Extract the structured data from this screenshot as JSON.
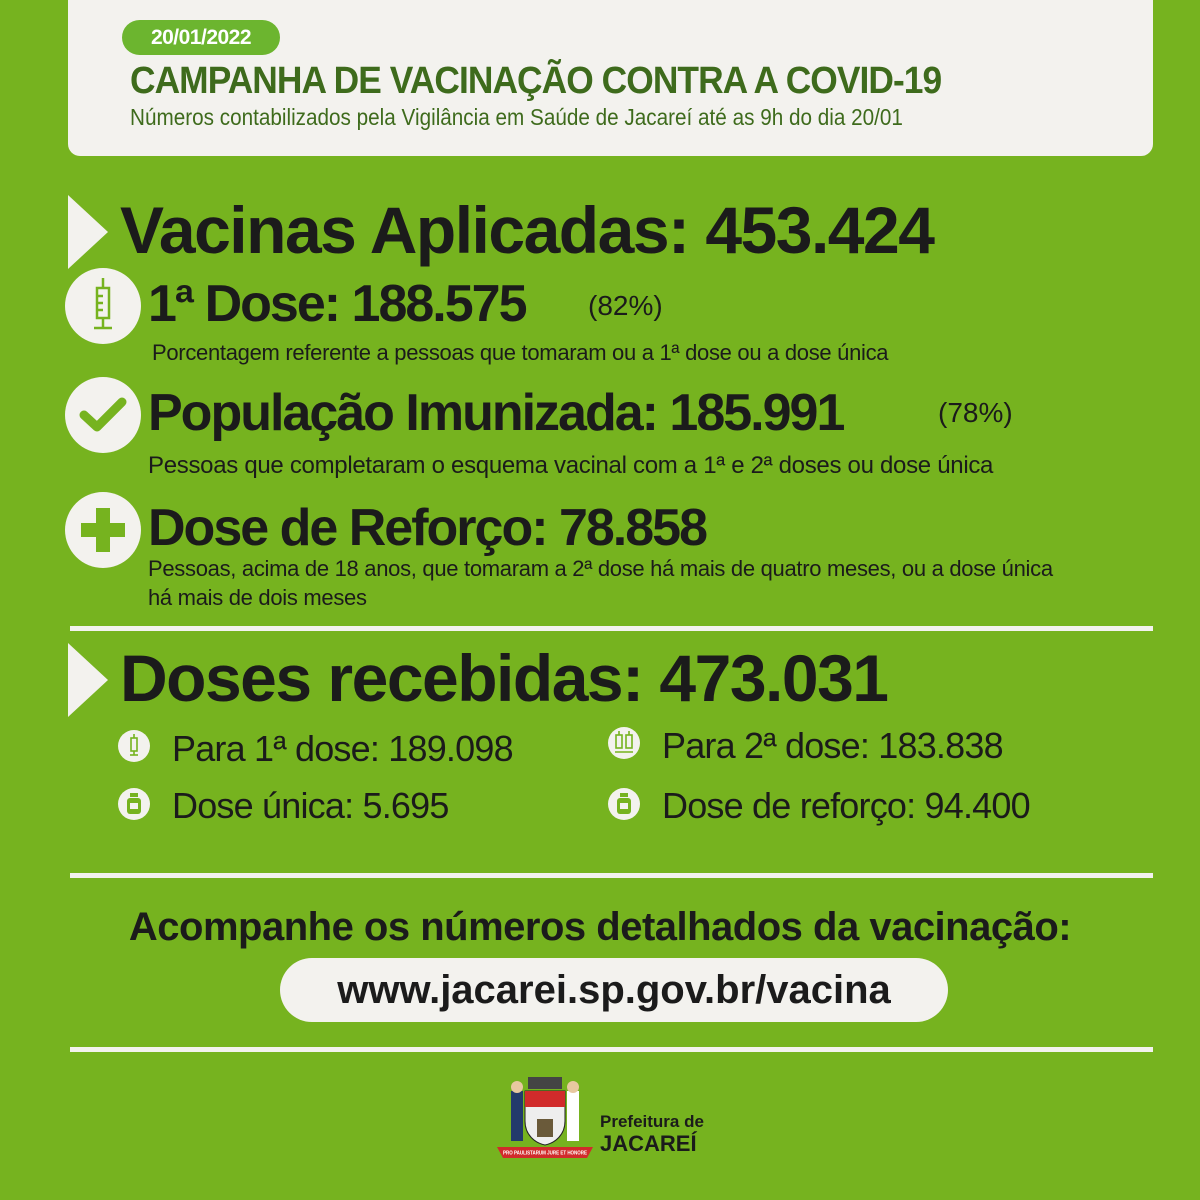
{
  "header": {
    "date": "20/01/2022",
    "title": "CAMPANHA DE VACINAÇÃO CONTRA A COVID-19",
    "subtitle": "Números contabilizados pela Vigilância em Saúde de Jacareí até as 9h do dia 20/01"
  },
  "applied": {
    "label": "Vacinas Aplicadas: 453.424",
    "first_dose": {
      "label": "1ª Dose: 188.575",
      "percent": "(82%)",
      "note": "Porcentagem referente a pessoas que tomaram ou a 1ª dose ou a dose única",
      "icon": "syringe-icon"
    },
    "immunized": {
      "label": "População Imunizada: 185.991",
      "percent": "(78%)",
      "note": "Pessoas que completaram o esquema vacinal com a 1ª e 2ª doses ou dose única",
      "icon": "check-icon"
    },
    "booster": {
      "label": "Dose de Reforço: 78.858",
      "note1": "Pessoas, acima de 18 anos, que tomaram a  2ª dose há mais de quatro meses, ou a dose única",
      "note2": "há mais de dois meses",
      "icon": "plus-icon"
    }
  },
  "received": {
    "label": "Doses recebidas: 473.031",
    "items": [
      {
        "label": "Para 1ª dose: 189.098",
        "icon": "syringe-icon"
      },
      {
        "label": "Para 2ª dose: 183.838",
        "icon": "two-syringes-icon"
      },
      {
        "label": "Dose única: 5.695",
        "icon": "vial-icon"
      },
      {
        "label": "Dose de reforço: 94.400",
        "icon": "vial-icon"
      }
    ]
  },
  "footer": {
    "cta": "Acompanhe os números detalhados da vacinação:",
    "url": "www.jacarei.sp.gov.br/vacina",
    "logo_line1": "Prefeitura de",
    "logo_line2": "JACAREÍ",
    "crest_motto": "PRO PAULISTARUM JURE ET HONORE"
  },
  "colors": {
    "background": "#76b31f",
    "card": "#f3f2ee",
    "title": "#3e6b1c",
    "pill": "#6cb52f"
  }
}
